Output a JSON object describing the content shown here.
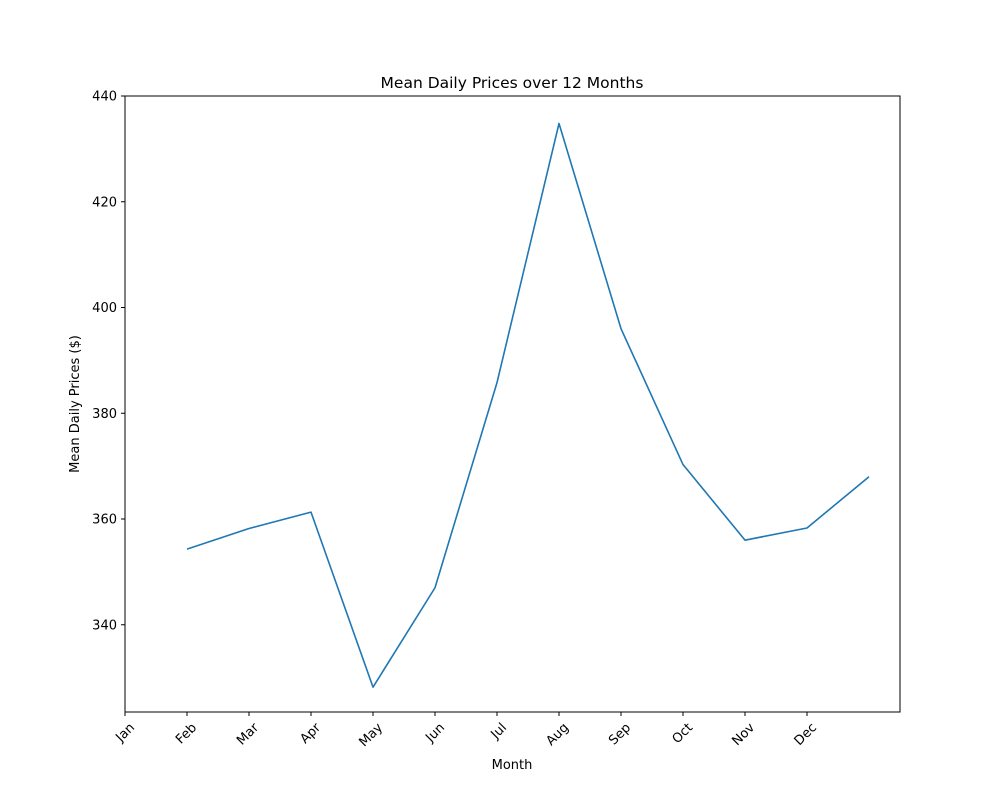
{
  "chart_data": {
    "type": "line",
    "title": "Mean Daily Prices over 12 Months",
    "xlabel": "Month",
    "ylabel": "Mean Daily Prices ($)",
    "x_tick_labels": [
      "Jan",
      "Feb",
      "Mar",
      "Apr",
      "May",
      "Jun",
      "Jul",
      "Aug",
      "Sep",
      "Oct",
      "Nov",
      "Dec"
    ],
    "y_ticks": [
      340,
      360,
      380,
      400,
      420,
      440
    ],
    "xlim": [
      0,
      12.5
    ],
    "ylim": [
      323.5,
      440
    ],
    "grid": false,
    "series": [
      {
        "color": "#1f77b4",
        "x": [
          1,
          2,
          3,
          4,
          5,
          6,
          7,
          8,
          9,
          10,
          11,
          12
        ],
        "y": [
          354.3,
          358.2,
          361.3,
          328.2,
          347.0,
          385.8,
          434.8,
          396.0,
          370.3,
          356.0,
          358.3,
          368.0
        ]
      }
    ]
  }
}
